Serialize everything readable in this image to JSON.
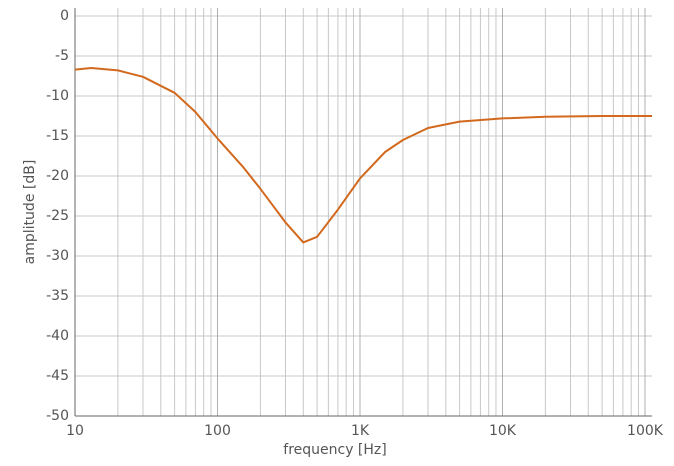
{
  "chart_data": {
    "type": "line",
    "x_label": "frequency [Hz]",
    "y_label": "amplitude [dB]",
    "x": [
      10,
      13,
      20,
      30,
      50,
      70,
      100,
      150,
      200,
      300,
      400,
      500,
      700,
      1000,
      1500,
      2000,
      3000,
      5000,
      10000,
      20000,
      50000,
      112000
    ],
    "series": [
      {
        "color": "#d2691e",
        "values": [
          -6.7,
          -6.5,
          -6.8,
          -7.6,
          -9.6,
          -12,
          -15.3,
          -18.8,
          -21.6,
          -25.8,
          -28.3,
          -27.6,
          -24.2,
          -20.3,
          -17,
          -15.5,
          -14,
          -13.2,
          -12.8,
          -12.6,
          -12.5,
          -12.5
        ]
      }
    ],
    "xscale": "log",
    "xlim": [
      10,
      112000
    ],
    "ylim": [
      -50,
      1
    ],
    "xticks": [
      10,
      100,
      {
        "value": 1000,
        "label": "1K"
      },
      {
        "value": 10000,
        "label": "10K"
      },
      {
        "value": 100000,
        "label": "100K"
      }
    ],
    "x_minor_ticks": [
      20,
      30,
      40,
      50,
      60,
      70,
      80,
      90,
      200,
      300,
      400,
      500,
      600,
      700,
      800,
      900,
      2000,
      3000,
      4000,
      5000,
      6000,
      7000,
      8000,
      9000,
      20000,
      30000,
      40000,
      50000,
      60000,
      70000,
      80000,
      90000
    ],
    "yticks": [
      0,
      -5,
      -10,
      -15,
      -20,
      -25,
      -30,
      -35,
      -40,
      -45,
      -50
    ],
    "grid": true
  }
}
